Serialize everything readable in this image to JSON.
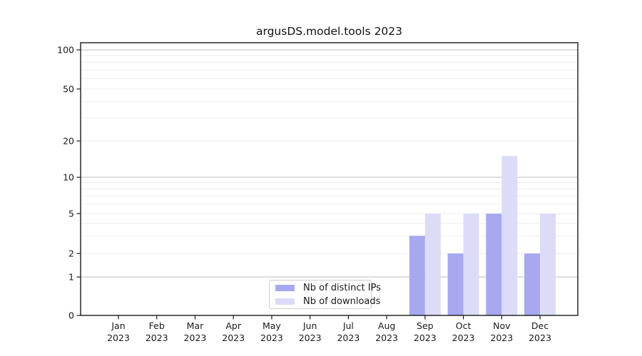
{
  "chart_data": {
    "type": "bar",
    "title": "argusDS.model.tools 2023",
    "categories": [
      "Jan",
      "Feb",
      "Mar",
      "Apr",
      "May",
      "Jun",
      "Jul",
      "Aug",
      "Sep",
      "Oct",
      "Nov",
      "Dec"
    ],
    "category_year": "2023",
    "series": [
      {
        "name": "Nb of distinct IPs",
        "color": "#a8a8f0",
        "values": [
          0,
          0,
          0,
          0,
          0,
          0,
          0,
          0,
          3,
          2,
          5,
          2
        ]
      },
      {
        "name": "Nb of downloads",
        "color": "#dcdcf8",
        "values": [
          0,
          0,
          0,
          0,
          0,
          0,
          0,
          0,
          5,
          5,
          15,
          5
        ]
      }
    ],
    "yticks": [
      0,
      1,
      2,
      5,
      10,
      20,
      50,
      100
    ],
    "yscale": "symlog",
    "ylim": [
      0,
      113
    ],
    "xlabel": "",
    "ylabel": "",
    "grid": {
      "major_values": [
        1,
        10,
        100
      ],
      "minor_values": [
        2,
        3,
        4,
        5,
        6,
        7,
        8,
        9,
        20,
        30,
        40,
        50,
        60,
        70,
        80,
        90
      ],
      "major_color": "#bcbcbc",
      "minor_color": "#ececec"
    },
    "legend_position": "lower center",
    "axis_color": "#1a1a1a"
  }
}
